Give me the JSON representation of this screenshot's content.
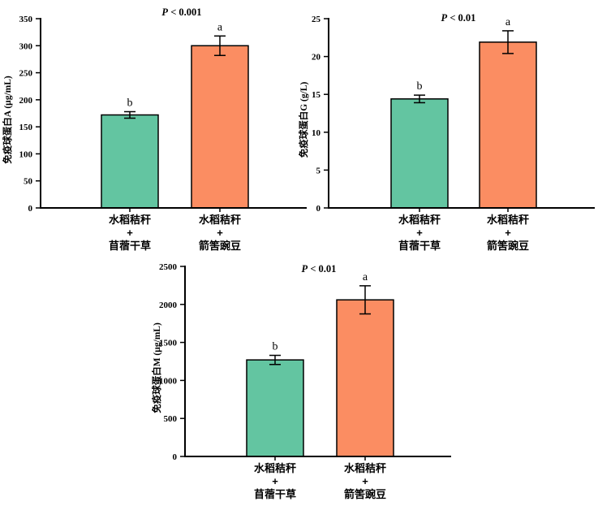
{
  "figure": {
    "background": "#ffffff",
    "description": "Three bar charts comparing serum immunoglobulin levels (IgA, IgG, IgM) between two forage treatments"
  },
  "colors": {
    "treatment1_bar": "#63C5A1",
    "treatment2_bar": "#FB8D62",
    "axis": "#000000",
    "text": "#000000"
  },
  "chart_data": [
    {
      "type": "bar",
      "title": "P < 0.001",
      "title_italic": "P",
      "title_rest": " < 0.001",
      "ylabel": "免疫球蛋白A (μg/mL)",
      "xlabel": "",
      "ylim": [
        0,
        350
      ],
      "yticks": [
        0,
        50,
        100,
        150,
        200,
        250,
        300,
        350
      ],
      "grid": false,
      "categories": [
        "水稻秸秆+苜蓿干草",
        "水稻秸秆+箭筈豌豆"
      ],
      "category_lines": [
        [
          "水稻秸秆",
          "+",
          "苜蓿干草"
        ],
        [
          "水稻秸秆",
          "+",
          "箭筈豌豆"
        ]
      ],
      "values": [
        172,
        300
      ],
      "errors": [
        6,
        18
      ],
      "sig_letters": [
        "b",
        "a"
      ],
      "bar_colors": [
        "#63C5A1",
        "#FB8D62"
      ]
    },
    {
      "type": "bar",
      "title": "P < 0.01",
      "title_italic": "P",
      "title_rest": " < 0.01",
      "ylabel": "免疫球蛋白G (g/L)",
      "xlabel": "",
      "ylim": [
        0,
        25
      ],
      "yticks": [
        0,
        5,
        10,
        15,
        20,
        25
      ],
      "grid": false,
      "categories": [
        "水稻秸秆+苜蓿干草",
        "水稻秸秆+箭筈豌豆"
      ],
      "category_lines": [
        [
          "水稻秸秆",
          "+",
          "苜蓿干草"
        ],
        [
          "水稻秸秆",
          "+",
          "箭筈豌豆"
        ]
      ],
      "values": [
        14.4,
        21.9
      ],
      "errors": [
        0.5,
        1.5
      ],
      "sig_letters": [
        "b",
        "a"
      ],
      "bar_colors": [
        "#63C5A1",
        "#FB8D62"
      ]
    },
    {
      "type": "bar",
      "title": "P < 0.01",
      "title_italic": "P",
      "title_rest": " < 0.01",
      "ylabel": "免疫球蛋白M (μg/mL)",
      "xlabel": "",
      "ylim": [
        0,
        2500
      ],
      "yticks": [
        0,
        500,
        1000,
        1500,
        2000,
        2500
      ],
      "grid": false,
      "categories": [
        "水稻秸秆+苜蓿干草",
        "水稻秸秆+箭筈豌豆"
      ],
      "category_lines": [
        [
          "水稻秸秆",
          "+",
          "苜蓿干草"
        ],
        [
          "水稻秸秆",
          "+",
          "箭筈豌豆"
        ]
      ],
      "values": [
        1270,
        2060
      ],
      "errors": [
        60,
        185
      ],
      "sig_letters": [
        "b",
        "a"
      ],
      "bar_colors": [
        "#63C5A1",
        "#FB8D62"
      ]
    }
  ]
}
